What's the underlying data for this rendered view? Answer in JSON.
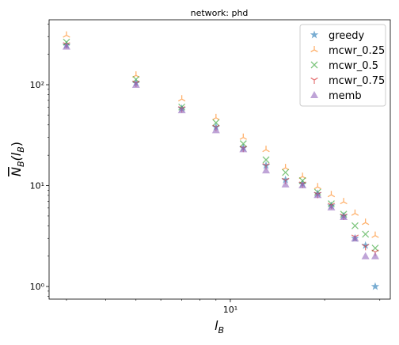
{
  "chart_data": {
    "type": "scatter",
    "title": "network: phd",
    "xlabel": [
      "l",
      "B"
    ],
    "ylabel": [
      "N",
      "B",
      "(l",
      "B",
      ")"
    ],
    "x": [
      3,
      5,
      7,
      9,
      11,
      13,
      15,
      17,
      19,
      21,
      23,
      25,
      27,
      29
    ],
    "xscale": "log",
    "yscale": "log",
    "xlim": [
      2.64,
      32.4
    ],
    "ylim": [
      0.75,
      440
    ],
    "xticks": [
      {
        "value": 10,
        "label": "10¹"
      }
    ],
    "yticks": [
      {
        "value": 1,
        "label": "10⁰"
      },
      {
        "value": 10,
        "label": "10¹"
      },
      {
        "value": 100,
        "label": "10²"
      }
    ],
    "legend": "upper right",
    "series": [
      {
        "name": "greedy",
        "color": "#1f77b4",
        "marker": "star",
        "values": [
          246,
          104,
          58,
          38,
          23.6,
          15.8,
          11.4,
          10.4,
          8.3,
          6.3,
          5,
          3,
          2.55,
          1
        ]
      },
      {
        "name": "mcwr_0.25",
        "color": "#ff7f0e",
        "marker": "tri_up",
        "values": [
          309,
          124,
          72,
          47,
          30,
          22.7,
          15,
          12.3,
          9.7,
          8.1,
          6.9,
          5.3,
          4.3,
          3.2
        ]
      },
      {
        "name": "mcwr_0.5",
        "color": "#2ca02c",
        "marker": "x",
        "values": [
          264,
          113,
          60,
          42,
          26,
          18,
          13.5,
          11.2,
          8.6,
          6.6,
          5.2,
          4,
          3.3,
          2.4
        ]
      },
      {
        "name": "mcwr_0.75",
        "color": "#d62728",
        "marker": "tri_down",
        "values": [
          250,
          104,
          58,
          38,
          23.5,
          15.8,
          11.3,
          10.4,
          8.2,
          6.4,
          5,
          3.1,
          2.5,
          2.2
        ]
      },
      {
        "name": "memb",
        "color": "#9467bd",
        "marker": "triangle",
        "values": [
          240,
          100,
          56,
          35.5,
          23,
          14.2,
          10.3,
          10.1,
          8.1,
          6.1,
          4.9,
          3,
          2,
          2
        ]
      }
    ]
  }
}
